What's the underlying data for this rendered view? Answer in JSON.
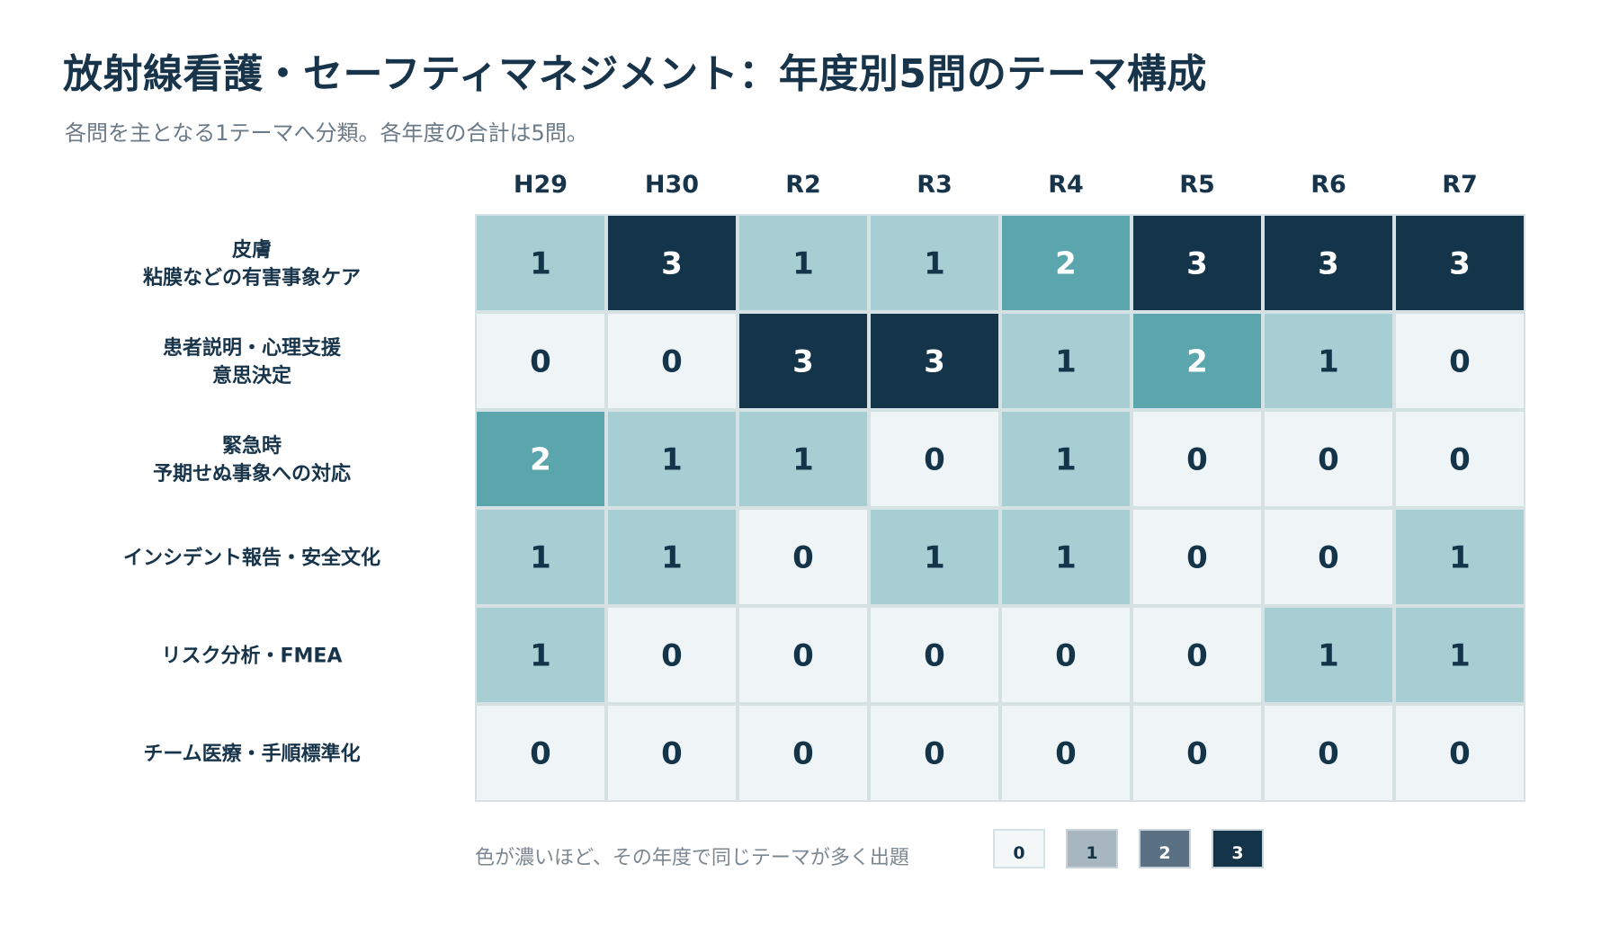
{
  "title": "放射線看護・セーフティマネジメント：年度別5問のテーマ構成",
  "subtitle": "各問を主となる1テーマへ分類。各年度の合計は5問。",
  "chart_data": {
    "type": "heatmap",
    "columns": [
      "H29",
      "H30",
      "R2",
      "R3",
      "R4",
      "R5",
      "R6",
      "R7"
    ],
    "rows": [
      {
        "label_lines": [
          "皮膚",
          "粘膜などの有害事象ケア"
        ],
        "values": [
          1,
          3,
          1,
          1,
          2,
          3,
          3,
          3
        ]
      },
      {
        "label_lines": [
          "患者説明・心理支援",
          "意思決定"
        ],
        "values": [
          0,
          0,
          3,
          3,
          1,
          2,
          1,
          0
        ]
      },
      {
        "label_lines": [
          "緊急時",
          "予期せぬ事象への対応"
        ],
        "values": [
          2,
          1,
          1,
          0,
          1,
          0,
          0,
          0
        ]
      },
      {
        "label_lines": [
          "インシデント報告・安全文化"
        ],
        "values": [
          1,
          1,
          0,
          1,
          1,
          0,
          0,
          1
        ]
      },
      {
        "label_lines": [
          "リスク分析・FMEA"
        ],
        "values": [
          1,
          0,
          0,
          0,
          0,
          0,
          1,
          1
        ]
      },
      {
        "label_lines": [
          "チーム医療・手順標準化"
        ],
        "values": [
          0,
          0,
          0,
          0,
          0,
          0,
          0,
          0
        ]
      }
    ],
    "cell_colors": {
      "0": "#eff5f7",
      "1": "#a6ced3",
      "2": "#5ba5ac",
      "3": "#14344a"
    },
    "text_colors": {
      "0": "#14344a",
      "1": "#14344a",
      "2": "#ffffff",
      "3": "#ffffff"
    },
    "vmin": 0,
    "vmax": 3
  },
  "legend": {
    "text": "色が濃いほど、その年度で同じテーマが多く出題",
    "items": [
      {
        "label": "0",
        "color": "#f3f7f8",
        "text_color": "#14344a"
      },
      {
        "label": "1",
        "color": "#a7b6bf",
        "text_color": "#14344a"
      },
      {
        "label": "2",
        "color": "#5a7183",
        "text_color": "#ffffff"
      },
      {
        "label": "3",
        "color": "#14344a",
        "text_color": "#ffffff"
      }
    ]
  }
}
